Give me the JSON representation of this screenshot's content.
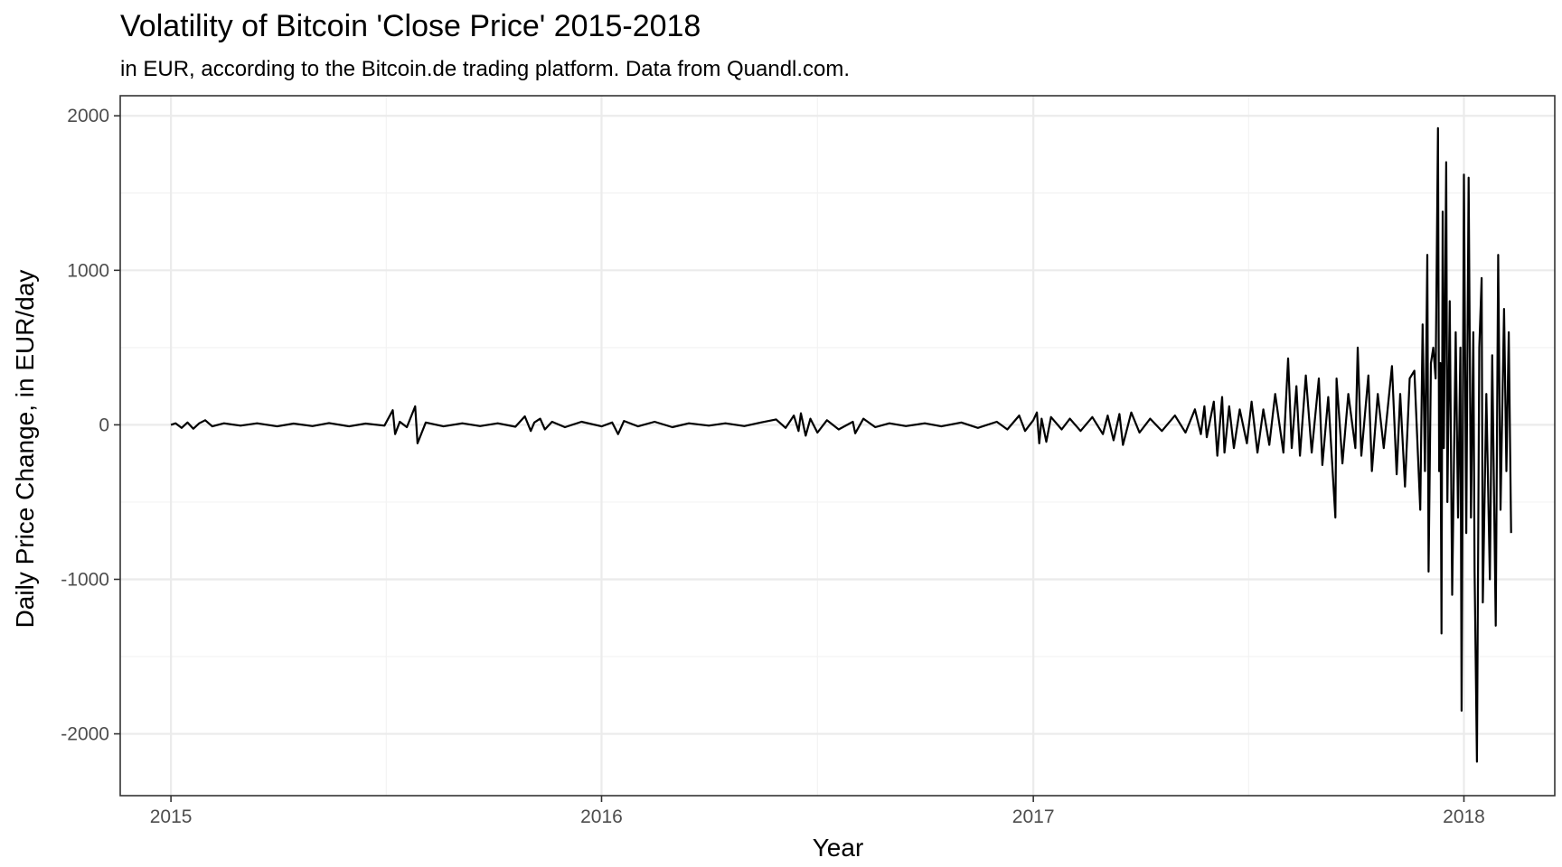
{
  "chart_data": {
    "type": "line",
    "title": "Volatility of Bitcoin 'Close Price' 2015-2018",
    "subtitle": "in EUR, according to the Bitcoin.de trading platform. Data from Quandl.com.",
    "xlabel": "Year",
    "ylabel": "Daily Price Change, in EUR/day",
    "xlim": [
      "2014-11-19",
      "2018-03-19"
    ],
    "ylim": [
      -2400,
      2130
    ],
    "x_ticks": [
      "2015",
      "2016",
      "2017",
      "2018"
    ],
    "x_tick_dates": [
      "2015-01-01",
      "2016-01-01",
      "2017-01-01",
      "2018-01-01"
    ],
    "y_ticks": [
      -2000,
      -1000,
      0,
      1000,
      2000
    ],
    "y_tick_labels": [
      "-2000",
      "-1000",
      "0",
      "1000",
      "2000"
    ],
    "grid": true,
    "series": [
      {
        "color": "#000000",
        "points": [
          [
            "2015-01-01",
            0
          ],
          [
            "2015-01-05",
            10
          ],
          [
            "2015-01-10",
            -20
          ],
          [
            "2015-01-15",
            15
          ],
          [
            "2015-01-20",
            -25
          ],
          [
            "2015-01-25",
            10
          ],
          [
            "2015-01-30",
            30
          ],
          [
            "2015-02-05",
            -10
          ],
          [
            "2015-02-15",
            10
          ],
          [
            "2015-03-01",
            -5
          ],
          [
            "2015-03-15",
            10
          ],
          [
            "2015-04-01",
            -10
          ],
          [
            "2015-04-15",
            8
          ],
          [
            "2015-05-01",
            -8
          ],
          [
            "2015-05-15",
            12
          ],
          [
            "2015-06-01",
            -10
          ],
          [
            "2015-06-15",
            8
          ],
          [
            "2015-07-01",
            -5
          ],
          [
            "2015-07-08",
            95
          ],
          [
            "2015-07-10",
            -60
          ],
          [
            "2015-07-14",
            20
          ],
          [
            "2015-07-20",
            -15
          ],
          [
            "2015-07-27",
            120
          ],
          [
            "2015-07-29",
            -120
          ],
          [
            "2015-08-05",
            15
          ],
          [
            "2015-08-20",
            -10
          ],
          [
            "2015-09-05",
            10
          ],
          [
            "2015-09-20",
            -8
          ],
          [
            "2015-10-05",
            10
          ],
          [
            "2015-10-20",
            -12
          ],
          [
            "2015-10-28",
            55
          ],
          [
            "2015-11-02",
            -40
          ],
          [
            "2015-11-05",
            15
          ],
          [
            "2015-11-10",
            40
          ],
          [
            "2015-11-14",
            -30
          ],
          [
            "2015-11-20",
            20
          ],
          [
            "2015-12-01",
            -15
          ],
          [
            "2015-12-15",
            20
          ],
          [
            "2016-01-01",
            -10
          ],
          [
            "2016-01-10",
            15
          ],
          [
            "2016-01-15",
            -60
          ],
          [
            "2016-01-20",
            25
          ],
          [
            "2016-02-01",
            -10
          ],
          [
            "2016-02-15",
            20
          ],
          [
            "2016-03-01",
            -15
          ],
          [
            "2016-03-15",
            10
          ],
          [
            "2016-04-01",
            -5
          ],
          [
            "2016-04-15",
            10
          ],
          [
            "2016-05-01",
            -8
          ],
          [
            "2016-05-15",
            15
          ],
          [
            "2016-05-28",
            35
          ],
          [
            "2016-06-05",
            -20
          ],
          [
            "2016-06-12",
            60
          ],
          [
            "2016-06-16",
            -40
          ],
          [
            "2016-06-18",
            75
          ],
          [
            "2016-06-22",
            -70
          ],
          [
            "2016-06-26",
            40
          ],
          [
            "2016-07-02",
            -50
          ],
          [
            "2016-07-10",
            30
          ],
          [
            "2016-07-20",
            -30
          ],
          [
            "2016-08-01",
            20
          ],
          [
            "2016-08-03",
            -55
          ],
          [
            "2016-08-10",
            40
          ],
          [
            "2016-08-20",
            -15
          ],
          [
            "2016-09-01",
            10
          ],
          [
            "2016-09-15",
            -8
          ],
          [
            "2016-10-01",
            10
          ],
          [
            "2016-10-15",
            -10
          ],
          [
            "2016-11-01",
            15
          ],
          [
            "2016-11-15",
            -20
          ],
          [
            "2016-12-01",
            20
          ],
          [
            "2016-12-10",
            -30
          ],
          [
            "2016-12-20",
            60
          ],
          [
            "2016-12-25",
            -40
          ],
          [
            "2017-01-01",
            30
          ],
          [
            "2017-01-04",
            80
          ],
          [
            "2017-01-06",
            -120
          ],
          [
            "2017-01-08",
            40
          ],
          [
            "2017-01-12",
            -110
          ],
          [
            "2017-01-16",
            50
          ],
          [
            "2017-01-25",
            -30
          ],
          [
            "2017-02-01",
            40
          ],
          [
            "2017-02-10",
            -40
          ],
          [
            "2017-02-20",
            50
          ],
          [
            "2017-03-01",
            -60
          ],
          [
            "2017-03-05",
            60
          ],
          [
            "2017-03-10",
            -100
          ],
          [
            "2017-03-15",
            70
          ],
          [
            "2017-03-18",
            -130
          ],
          [
            "2017-03-25",
            80
          ],
          [
            "2017-04-01",
            -50
          ],
          [
            "2017-04-10",
            40
          ],
          [
            "2017-04-20",
            -40
          ],
          [
            "2017-05-01",
            60
          ],
          [
            "2017-05-10",
            -50
          ],
          [
            "2017-05-18",
            100
          ],
          [
            "2017-05-23",
            -60
          ],
          [
            "2017-05-26",
            120
          ],
          [
            "2017-05-28",
            -80
          ],
          [
            "2017-06-03",
            150
          ],
          [
            "2017-06-06",
            -200
          ],
          [
            "2017-06-10",
            180
          ],
          [
            "2017-06-12",
            -180
          ],
          [
            "2017-06-16",
            120
          ],
          [
            "2017-06-20",
            -150
          ],
          [
            "2017-06-25",
            100
          ],
          [
            "2017-07-01",
            -120
          ],
          [
            "2017-07-05",
            150
          ],
          [
            "2017-07-10",
            -180
          ],
          [
            "2017-07-15",
            100
          ],
          [
            "2017-07-20",
            -130
          ],
          [
            "2017-07-25",
            200
          ],
          [
            "2017-08-01",
            -180
          ],
          [
            "2017-08-05",
            430
          ],
          [
            "2017-08-08",
            -150
          ],
          [
            "2017-08-12",
            250
          ],
          [
            "2017-08-15",
            -200
          ],
          [
            "2017-08-20",
            320
          ],
          [
            "2017-08-25",
            -180
          ],
          [
            "2017-08-31",
            300
          ],
          [
            "2017-09-03",
            -260
          ],
          [
            "2017-09-08",
            180
          ],
          [
            "2017-09-14",
            -600
          ],
          [
            "2017-09-15",
            300
          ],
          [
            "2017-09-20",
            -250
          ],
          [
            "2017-09-25",
            200
          ],
          [
            "2017-10-01",
            -150
          ],
          [
            "2017-10-03",
            500
          ],
          [
            "2017-10-06",
            -200
          ],
          [
            "2017-10-12",
            320
          ],
          [
            "2017-10-15",
            -300
          ],
          [
            "2017-10-20",
            200
          ],
          [
            "2017-10-25",
            -150
          ],
          [
            "2017-11-01",
            380
          ],
          [
            "2017-11-05",
            -320
          ],
          [
            "2017-11-08",
            200
          ],
          [
            "2017-11-12",
            -400
          ],
          [
            "2017-11-16",
            300
          ],
          [
            "2017-11-20",
            350
          ],
          [
            "2017-11-25",
            -550
          ],
          [
            "2017-11-27",
            650
          ],
          [
            "2017-11-29",
            -300
          ],
          [
            "2017-12-01",
            1100
          ],
          [
            "2017-12-02",
            -950
          ],
          [
            "2017-12-04",
            400
          ],
          [
            "2017-12-06",
            500
          ],
          [
            "2017-12-08",
            300
          ],
          [
            "2017-12-10",
            1920
          ],
          [
            "2017-12-11",
            -300
          ],
          [
            "2017-12-12",
            400
          ],
          [
            "2017-12-13",
            -1350
          ],
          [
            "2017-12-14",
            1380
          ],
          [
            "2017-12-15",
            -150
          ],
          [
            "2017-12-17",
            1700
          ],
          [
            "2017-12-18",
            -500
          ],
          [
            "2017-12-20",
            800
          ],
          [
            "2017-12-22",
            -1100
          ],
          [
            "2017-12-25",
            600
          ],
          [
            "2017-12-27",
            -600
          ],
          [
            "2017-12-29",
            500
          ],
          [
            "2017-12-30",
            -1850
          ],
          [
            "2018-01-01",
            1620
          ],
          [
            "2018-01-03",
            -700
          ],
          [
            "2018-01-05",
            1600
          ],
          [
            "2018-01-07",
            -600
          ],
          [
            "2018-01-09",
            600
          ],
          [
            "2018-01-10",
            -950
          ],
          [
            "2018-01-12",
            -2180
          ],
          [
            "2018-01-14",
            500
          ],
          [
            "2018-01-16",
            950
          ],
          [
            "2018-01-17",
            -1150
          ],
          [
            "2018-01-20",
            200
          ],
          [
            "2018-01-23",
            -1000
          ],
          [
            "2018-01-25",
            450
          ],
          [
            "2018-01-28",
            -1300
          ],
          [
            "2018-01-30",
            1100
          ],
          [
            "2018-02-01",
            -550
          ],
          [
            "2018-02-04",
            750
          ],
          [
            "2018-02-06",
            -300
          ],
          [
            "2018-02-08",
            600
          ],
          [
            "2018-02-10",
            -700
          ]
        ]
      }
    ]
  }
}
